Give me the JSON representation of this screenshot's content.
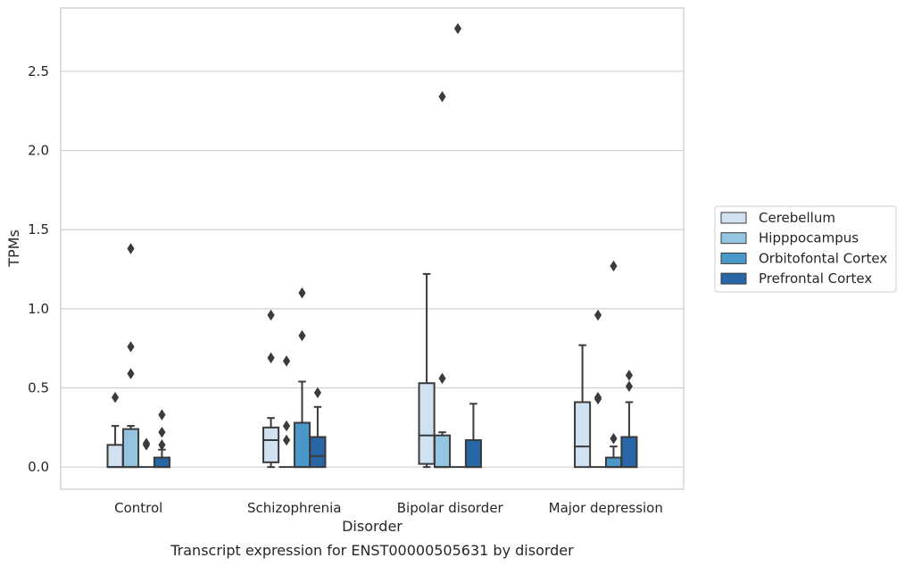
{
  "chart_data": {
    "type": "box",
    "xlabel": "Disorder",
    "ylabel": "TPMs",
    "caption": "Transcript expression for ENST00000505631 by disorder",
    "ylim": [
      -0.14,
      2.9
    ],
    "yticks": [
      0.0,
      0.5,
      1.0,
      1.5,
      2.0,
      2.5
    ],
    "ytick_labels": [
      "0.0",
      "0.5",
      "1.0",
      "1.5",
      "2.0",
      "2.5"
    ],
    "grid": "horizontal",
    "legend_position": "right",
    "categories": [
      "Control",
      "Schizophrenia",
      "Bipolar disorder",
      "Major depression"
    ],
    "series": [
      {
        "name": "Cerebellum",
        "color": "#d0e1f2",
        "boxes": [
          {
            "whisker_low": 0.0,
            "q1": 0.0,
            "median": 0.0,
            "q3": 0.14,
            "whisker_high": 0.26,
            "outliers": [
              0.44
            ]
          },
          {
            "whisker_low": 0.0,
            "q1": 0.03,
            "median": 0.17,
            "q3": 0.25,
            "whisker_high": 0.31,
            "outliers": [
              0.69,
              0.96
            ]
          },
          {
            "whisker_low": 0.0,
            "q1": 0.02,
            "median": 0.2,
            "q3": 0.53,
            "whisker_high": 1.22,
            "outliers": []
          },
          {
            "whisker_low": 0.0,
            "q1": 0.0,
            "median": 0.13,
            "q3": 0.41,
            "whisker_high": 0.77,
            "outliers": []
          }
        ]
      },
      {
        "name": "Hipppocampus",
        "color": "#94c4df",
        "boxes": [
          {
            "whisker_low": 0.0,
            "q1": 0.0,
            "median": 0.0,
            "q3": 0.24,
            "whisker_high": 0.26,
            "outliers": [
              0.59,
              0.76,
              1.38
            ]
          },
          {
            "whisker_low": 0.0,
            "q1": 0.0,
            "median": 0.0,
            "q3": 0.0,
            "whisker_high": 0.0,
            "outliers": [
              0.17,
              0.26,
              0.67
            ]
          },
          {
            "whisker_low": 0.0,
            "q1": 0.0,
            "median": 0.0,
            "q3": 0.2,
            "whisker_high": 0.22,
            "outliers": [
              0.56,
              2.34
            ]
          },
          {
            "whisker_low": 0.0,
            "q1": 0.0,
            "median": 0.0,
            "q3": 0.0,
            "whisker_high": 0.0,
            "outliers": [
              0.43,
              0.44,
              0.96
            ]
          }
        ]
      },
      {
        "name": "Orbitofontal Cortex",
        "color": "#4a98c9",
        "boxes": [
          {
            "whisker_low": 0.0,
            "q1": 0.0,
            "median": 0.0,
            "q3": 0.0,
            "whisker_high": 0.0,
            "outliers": [
              0.14,
              0.15
            ]
          },
          {
            "whisker_low": 0.0,
            "q1": 0.0,
            "median": 0.0,
            "q3": 0.28,
            "whisker_high": 0.54,
            "outliers": [
              0.83,
              1.1
            ]
          },
          {
            "whisker_low": 0.0,
            "q1": 0.0,
            "median": 0.0,
            "q3": 0.0,
            "whisker_high": 0.0,
            "outliers": [
              2.77
            ]
          },
          {
            "whisker_low": 0.0,
            "q1": 0.0,
            "median": 0.0,
            "q3": 0.06,
            "whisker_high": 0.13,
            "outliers": [
              0.18,
              1.27
            ]
          }
        ]
      },
      {
        "name": "Prefrontal Cortex",
        "color": "#2866a8",
        "boxes": [
          {
            "whisker_low": 0.0,
            "q1": 0.0,
            "median": 0.0,
            "q3": 0.06,
            "whisker_high": 0.11,
            "outliers": [
              0.14,
              0.22,
              0.33
            ]
          },
          {
            "whisker_low": 0.0,
            "q1": 0.0,
            "median": 0.07,
            "q3": 0.19,
            "whisker_high": 0.38,
            "outliers": [
              0.47
            ]
          },
          {
            "whisker_low": 0.0,
            "q1": 0.0,
            "median": 0.0,
            "q3": 0.17,
            "whisker_high": 0.4,
            "outliers": []
          },
          {
            "whisker_low": 0.0,
            "q1": 0.0,
            "median": 0.0,
            "q3": 0.19,
            "whisker_high": 0.41,
            "outliers": [
              0.51,
              0.58
            ]
          }
        ]
      }
    ]
  }
}
